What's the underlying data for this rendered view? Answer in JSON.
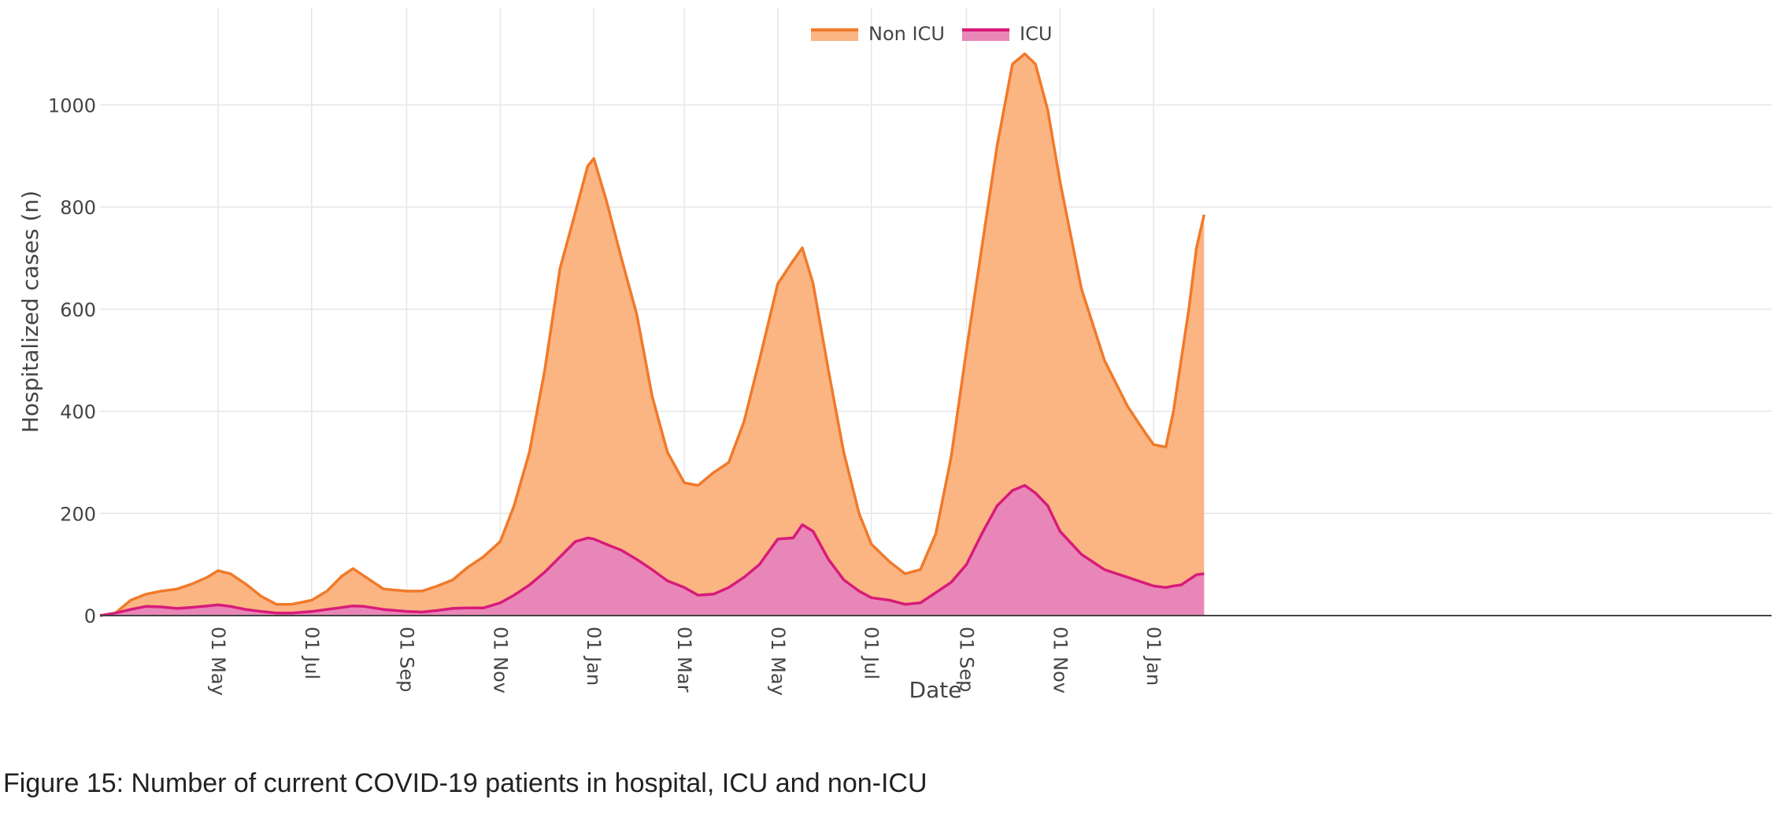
{
  "chart_data": {
    "type": "area",
    "stacked": true,
    "xlabel": "Date",
    "ylabel": "Hospitalized cases (n)",
    "ylim": [
      0,
      1190
    ],
    "yticks": [
      0,
      200,
      400,
      600,
      800,
      1000
    ],
    "grid": true,
    "legend_position": "top-center",
    "x_unit": "days since first data point",
    "xlim": [
      0,
      1090
    ],
    "xticks": [
      {
        "label": "01 May",
        "day": 77
      },
      {
        "label": "01 Jul",
        "day": 138
      },
      {
        "label": "01 Sep",
        "day": 200
      },
      {
        "label": "01 Nov",
        "day": 261
      },
      {
        "label": "01 Jan",
        "day": 322
      },
      {
        "label": "01 Mar",
        "day": 381
      },
      {
        "label": "01 May",
        "day": 442
      },
      {
        "label": "01 Jul",
        "day": 503
      },
      {
        "label": "01 Sep",
        "day": 565
      },
      {
        "label": "01 Nov",
        "day": 626
      },
      {
        "label": "01 Jan",
        "day": 687
      }
    ],
    "series": [
      {
        "name": "Non ICU",
        "line_color": "#f07a2a",
        "fill_color": "#fbb583",
        "points": [
          [
            0,
            0
          ],
          [
            10,
            5
          ],
          [
            20,
            30
          ],
          [
            30,
            42
          ],
          [
            40,
            48
          ],
          [
            50,
            52
          ],
          [
            60,
            62
          ],
          [
            70,
            75
          ],
          [
            77,
            88
          ],
          [
            85,
            82
          ],
          [
            95,
            62
          ],
          [
            105,
            38
          ],
          [
            115,
            22
          ],
          [
            125,
            22
          ],
          [
            138,
            30
          ],
          [
            148,
            48
          ],
          [
            158,
            78
          ],
          [
            165,
            92
          ],
          [
            172,
            78
          ],
          [
            185,
            52
          ],
          [
            200,
            48
          ],
          [
            210,
            48
          ],
          [
            220,
            58
          ],
          [
            230,
            70
          ],
          [
            240,
            95
          ],
          [
            250,
            115
          ],
          [
            261,
            145
          ],
          [
            270,
            215
          ],
          [
            280,
            320
          ],
          [
            290,
            480
          ],
          [
            300,
            680
          ],
          [
            310,
            790
          ],
          [
            318,
            880
          ],
          [
            322,
            895
          ],
          [
            330,
            815
          ],
          [
            340,
            700
          ],
          [
            350,
            590
          ],
          [
            360,
            430
          ],
          [
            370,
            320
          ],
          [
            381,
            260
          ],
          [
            390,
            255
          ],
          [
            400,
            280
          ],
          [
            410,
            300
          ],
          [
            420,
            380
          ],
          [
            430,
            500
          ],
          [
            442,
            650
          ],
          [
            452,
            695
          ],
          [
            458,
            720
          ],
          [
            465,
            650
          ],
          [
            475,
            480
          ],
          [
            485,
            320
          ],
          [
            495,
            200
          ],
          [
            503,
            140
          ],
          [
            515,
            105
          ],
          [
            525,
            82
          ],
          [
            535,
            90
          ],
          [
            545,
            160
          ],
          [
            555,
            310
          ],
          [
            565,
            520
          ],
          [
            575,
            720
          ],
          [
            585,
            920
          ],
          [
            595,
            1080
          ],
          [
            603,
            1100
          ],
          [
            610,
            1080
          ],
          [
            618,
            990
          ],
          [
            626,
            850
          ],
          [
            640,
            640
          ],
          [
            655,
            500
          ],
          [
            670,
            410
          ],
          [
            680,
            365
          ],
          [
            687,
            335
          ],
          [
            695,
            330
          ],
          [
            700,
            400
          ],
          [
            705,
            500
          ],
          [
            710,
            600
          ],
          [
            715,
            720
          ],
          [
            720,
            785
          ]
        ]
      },
      {
        "name": "ICU",
        "line_color": "#d81b7a",
        "fill_color": "#e887b7",
        "points": [
          [
            0,
            0
          ],
          [
            10,
            5
          ],
          [
            20,
            12
          ],
          [
            30,
            18
          ],
          [
            40,
            17
          ],
          [
            50,
            14
          ],
          [
            60,
            16
          ],
          [
            70,
            19
          ],
          [
            77,
            21
          ],
          [
            85,
            18
          ],
          [
            95,
            12
          ],
          [
            105,
            8
          ],
          [
            115,
            5
          ],
          [
            125,
            5
          ],
          [
            138,
            8
          ],
          [
            148,
            12
          ],
          [
            158,
            16
          ],
          [
            165,
            19
          ],
          [
            172,
            18
          ],
          [
            185,
            12
          ],
          [
            200,
            8
          ],
          [
            210,
            7
          ],
          [
            220,
            10
          ],
          [
            230,
            14
          ],
          [
            240,
            15
          ],
          [
            250,
            15
          ],
          [
            261,
            25
          ],
          [
            270,
            40
          ],
          [
            280,
            60
          ],
          [
            290,
            85
          ],
          [
            300,
            115
          ],
          [
            310,
            145
          ],
          [
            318,
            152
          ],
          [
            322,
            150
          ],
          [
            330,
            140
          ],
          [
            340,
            128
          ],
          [
            350,
            110
          ],
          [
            360,
            90
          ],
          [
            370,
            68
          ],
          [
            381,
            55
          ],
          [
            390,
            40
          ],
          [
            400,
            42
          ],
          [
            410,
            55
          ],
          [
            420,
            75
          ],
          [
            430,
            100
          ],
          [
            442,
            150
          ],
          [
            452,
            152
          ],
          [
            458,
            178
          ],
          [
            465,
            165
          ],
          [
            475,
            110
          ],
          [
            485,
            70
          ],
          [
            495,
            48
          ],
          [
            503,
            35
          ],
          [
            515,
            30
          ],
          [
            525,
            22
          ],
          [
            535,
            25
          ],
          [
            545,
            45
          ],
          [
            555,
            65
          ],
          [
            565,
            100
          ],
          [
            575,
            160
          ],
          [
            585,
            215
          ],
          [
            595,
            245
          ],
          [
            603,
            255
          ],
          [
            610,
            240
          ],
          [
            618,
            215
          ],
          [
            626,
            165
          ],
          [
            640,
            120
          ],
          [
            655,
            90
          ],
          [
            670,
            75
          ],
          [
            680,
            65
          ],
          [
            687,
            58
          ],
          [
            695,
            55
          ],
          [
            700,
            58
          ],
          [
            705,
            60
          ],
          [
            710,
            70
          ],
          [
            715,
            80
          ],
          [
            720,
            82
          ]
        ]
      }
    ]
  },
  "caption": "Figure 15: Number of current COVID-19 patients in hospital, ICU and non-ICU"
}
